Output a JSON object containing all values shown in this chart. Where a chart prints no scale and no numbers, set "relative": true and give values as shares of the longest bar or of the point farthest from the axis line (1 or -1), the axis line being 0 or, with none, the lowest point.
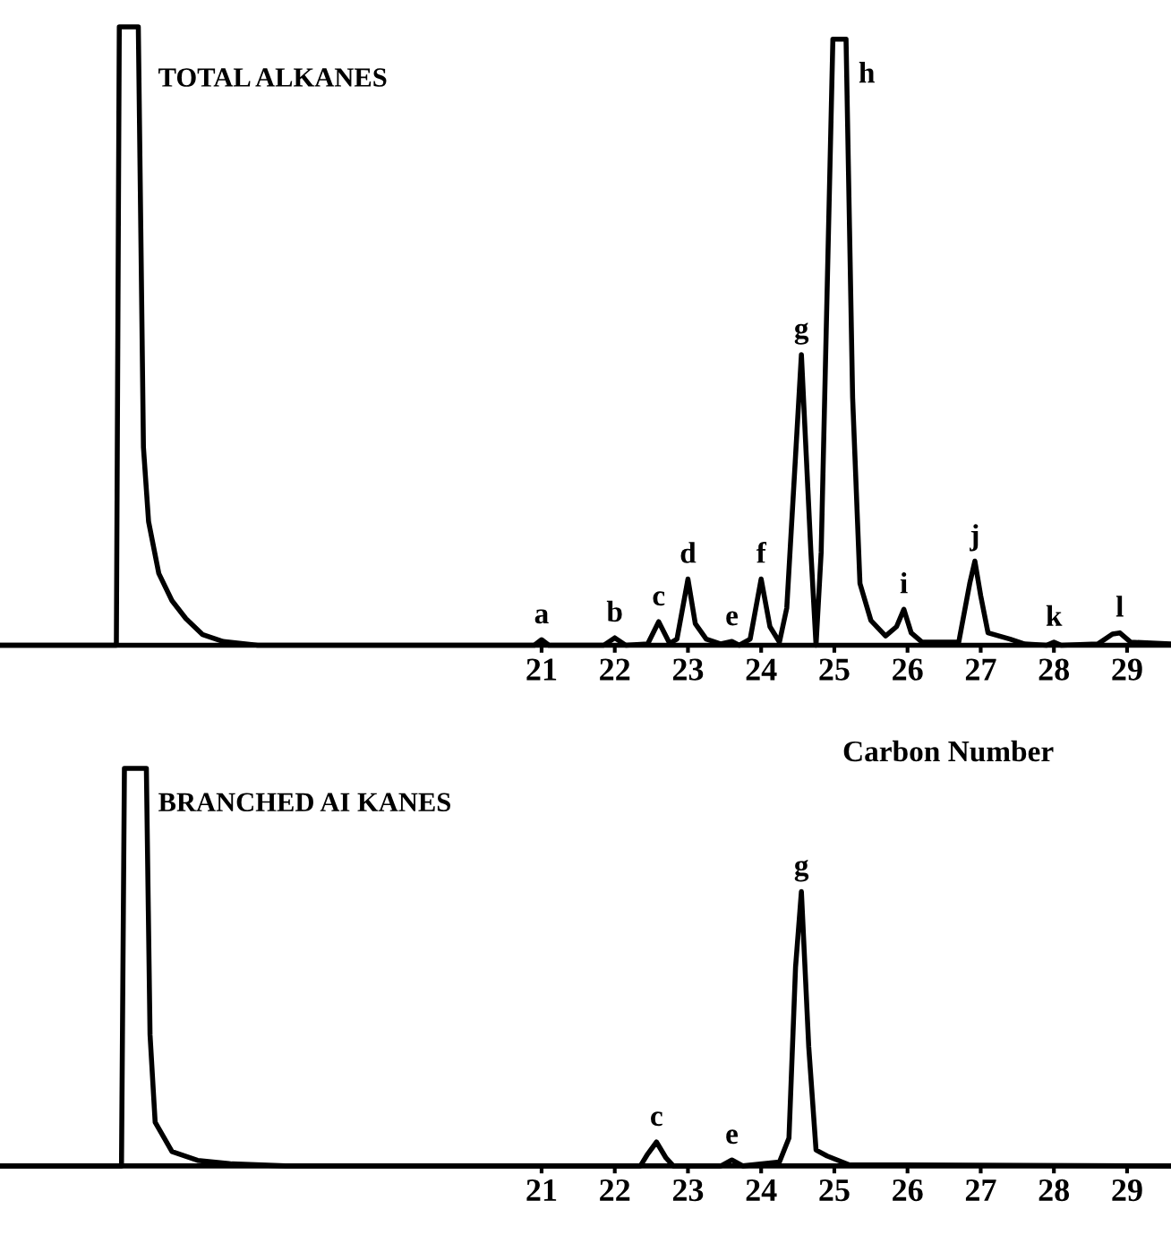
{
  "chart_data": [
    {
      "type": "line",
      "title": "TOTAL ALKANES",
      "xlabel": "Carbon Number",
      "relative": true,
      "tick_labels": "x",
      "xlim": [
        13.6,
        29.6
      ],
      "xticks": [
        21,
        22,
        23,
        24,
        25,
        26,
        27,
        28,
        29
      ],
      "series": [
        {
          "color": "#000000",
          "x": [
            13.6,
            15.19,
            15.23,
            15.49,
            15.56,
            15.63,
            15.77,
            15.95,
            16.14,
            16.37,
            16.65,
            17.12,
            20.9,
            21.0,
            21.1,
            21.85,
            22.0,
            22.15,
            22.45,
            22.6,
            22.75,
            22.85,
            23.0,
            23.1,
            23.25,
            23.45,
            23.6,
            23.7,
            23.85,
            24.0,
            24.12,
            24.25,
            24.35,
            24.55,
            24.68,
            24.75,
            24.82,
            24.98,
            25.16,
            25.25,
            25.35,
            25.5,
            25.7,
            25.85,
            25.95,
            26.05,
            26.2,
            26.7,
            26.85,
            26.92,
            27.0,
            27.1,
            27.4,
            27.6,
            27.9,
            28.0,
            28.1,
            28.6,
            28.8,
            28.9,
            29.05,
            29.6
          ],
          "values": [
            0,
            0,
            1.0,
            1.0,
            0.32,
            0.2,
            0.116,
            0.072,
            0.043,
            0.017,
            0.006,
            0,
            0,
            0.009,
            0,
            0,
            0.012,
            0,
            0.002,
            0.038,
            0.003,
            0.01,
            0.107,
            0.035,
            0.01,
            0.002,
            0.006,
            0,
            0.01,
            0.107,
            0.03,
            0.005,
            0.06,
            0.47,
            0.15,
            0.0,
            0.15,
            0.98,
            0.98,
            0.4,
            0.1,
            0.04,
            0.015,
            0.03,
            0.058,
            0.02,
            0.005,
            0.005,
            0.1,
            0.136,
            0.08,
            0.02,
            0.01,
            0.002,
            0,
            0.005,
            0,
            0.002,
            0.018,
            0.02,
            0.005,
            0.002
          ]
        }
      ],
      "annotations": [
        {
          "text": "a",
          "x": 21.0,
          "y": 0.009
        },
        {
          "text": "b",
          "x": 22.0,
          "y": 0.012
        },
        {
          "text": "c",
          "x": 22.6,
          "y": 0.038
        },
        {
          "text": "d",
          "x": 23.0,
          "y": 0.107
        },
        {
          "text": "e",
          "x": 23.6,
          "y": 0.006
        },
        {
          "text": "f",
          "x": 24.0,
          "y": 0.107
        },
        {
          "text": "g",
          "x": 24.55,
          "y": 0.47
        },
        {
          "text": "h",
          "x": 25.16,
          "y": 0.98
        },
        {
          "text": "i",
          "x": 25.95,
          "y": 0.058
        },
        {
          "text": "j",
          "x": 26.92,
          "y": 0.136
        },
        {
          "text": "k",
          "x": 28.0,
          "y": 0.005
        },
        {
          "text": "l",
          "x": 28.9,
          "y": 0.02
        }
      ]
    },
    {
      "type": "line",
      "title": "BRANCHED AI KANES",
      "relative": true,
      "tick_labels": "x",
      "xlim": [
        13.6,
        29.6
      ],
      "xticks": [
        21,
        22,
        23,
        24,
        25,
        26,
        27,
        28,
        29
      ],
      "series": [
        {
          "color": "#000000",
          "x": [
            13.6,
            15.26,
            15.3,
            15.6,
            15.65,
            15.72,
            15.95,
            16.3,
            16.77,
            17.5,
            22.35,
            22.45,
            22.57,
            22.7,
            22.8,
            23.45,
            23.6,
            23.75,
            24.25,
            24.38,
            24.47,
            24.55,
            24.65,
            24.75,
            24.9,
            25.2,
            29.6
          ],
          "values": [
            0,
            0,
            1.0,
            1.0,
            0.33,
            0.11,
            0.036,
            0.014,
            0.005,
            0,
            0,
            0.03,
            0.06,
            0.02,
            0,
            0,
            0.015,
            0,
            0.01,
            0.07,
            0.5,
            0.69,
            0.3,
            0.04,
            0.025,
            0.003,
            0
          ]
        }
      ],
      "annotations": [
        {
          "text": "c",
          "x": 22.57,
          "y": 0.06
        },
        {
          "text": "e",
          "x": 23.6,
          "y": 0.015
        },
        {
          "text": "g",
          "x": 24.55,
          "y": 0.69
        }
      ]
    }
  ]
}
